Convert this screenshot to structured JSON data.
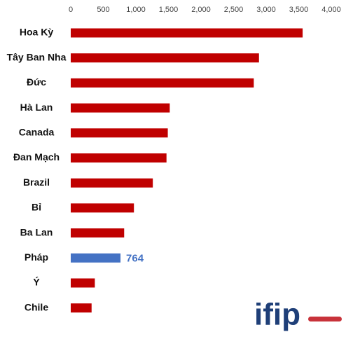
{
  "chart_data": {
    "type": "hbar",
    "categories": [
      "Hoa Kỳ",
      "Tây Ban Nha",
      "Đức",
      "Hà Lan",
      "Canada",
      "Đan Mạch",
      "Brazil",
      "Bỉ",
      "Ba Lan",
      "Pháp",
      "Ý",
      "Chile"
    ],
    "values": [
      3560,
      2890,
      2810,
      1520,
      1490,
      1470,
      1260,
      970,
      820,
      764,
      370,
      320
    ],
    "colors": [
      "#c00000",
      "#c00000",
      "#c00000",
      "#c00000",
      "#c00000",
      "#c00000",
      "#c00000",
      "#c00000",
      "#c00000",
      "#4472c4",
      "#c00000",
      "#c00000"
    ],
    "value_labels": [
      null,
      null,
      null,
      null,
      null,
      null,
      null,
      null,
      null,
      "764",
      null,
      null
    ],
    "xlim": [
      0,
      4000
    ],
    "xticks": [
      0,
      500,
      {
        "value": 1000,
        "label": "1,000"
      },
      {
        "value": 1500,
        "label": "1,500"
      },
      {
        "value": 2000,
        "label": "2,000"
      },
      {
        "value": 2500,
        "label": "2,500"
      },
      {
        "value": 3000,
        "label": "3,000"
      },
      {
        "value": 3500,
        "label": "3,500"
      },
      {
        "value": 4000,
        "label": "4,000"
      }
    ],
    "grid": false
  },
  "logo": {
    "text": "ifip"
  }
}
